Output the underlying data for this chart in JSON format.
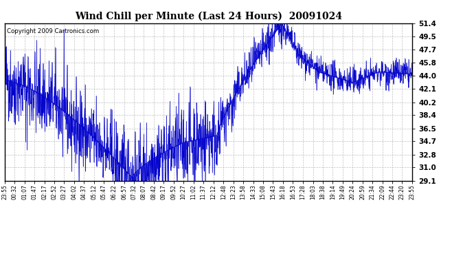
{
  "title": "Wind Chill per Minute (Last 24 Hours)  20091024",
  "copyright": "Copyright 2009 Cartronics.com",
  "line_color": "#0000CC",
  "background_color": "#FFFFFF",
  "grid_color": "#AAAAAA",
  "yticks": [
    29.1,
    31.0,
    32.8,
    34.7,
    36.5,
    38.4,
    40.2,
    42.1,
    44.0,
    45.8,
    47.7,
    49.5,
    51.4
  ],
  "ymin": 29.1,
  "ymax": 51.4,
  "xtick_labels": [
    "23:55",
    "00:32",
    "01:07",
    "01:47",
    "02:17",
    "02:52",
    "03:27",
    "04:02",
    "04:37",
    "05:12",
    "05:47",
    "06:22",
    "06:57",
    "07:32",
    "08:07",
    "08:42",
    "09:17",
    "09:52",
    "10:27",
    "11:02",
    "11:37",
    "12:12",
    "12:48",
    "13:23",
    "13:58",
    "14:33",
    "15:08",
    "15:43",
    "16:18",
    "16:53",
    "17:28",
    "18:03",
    "18:38",
    "19:14",
    "19:49",
    "20:24",
    "20:59",
    "21:34",
    "22:09",
    "22:44",
    "23:20",
    "23:55"
  ],
  "n_points": 1440,
  "seed": 42
}
